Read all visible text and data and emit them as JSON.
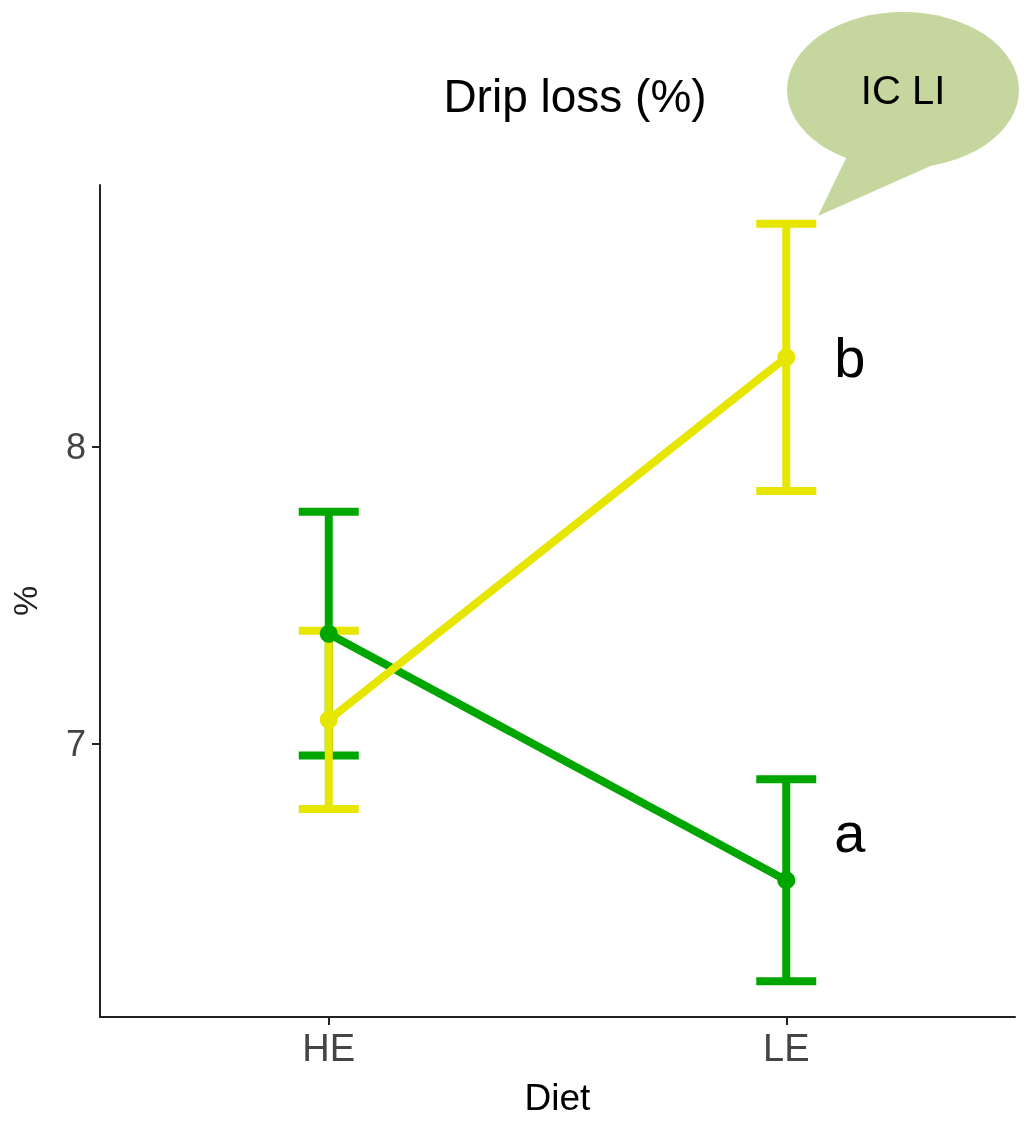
{
  "chart_data": {
    "type": "line",
    "title": "Drip loss (%)",
    "xlabel": "Diet",
    "ylabel": "%",
    "categories": [
      "HE",
      "LE"
    ],
    "series": [
      {
        "color": "#00a600",
        "values": [
          7.37,
          6.54
        ],
        "errors": [
          0.41,
          0.34
        ]
      },
      {
        "color": "#e6e600",
        "values": [
          7.08,
          8.3
        ],
        "errors": [
          0.3,
          0.45
        ]
      }
    ],
    "ylim": [
      6.08,
      8.88
    ],
    "yticks": [
      7,
      8
    ],
    "grid": false,
    "marker": "circle",
    "line_style": "solid",
    "annotations": [
      {
        "text": "b",
        "x": "LE",
        "y": 8.3
      },
      {
        "text": "a",
        "x": "LE",
        "y": 6.7
      },
      "IC LI"
    ]
  }
}
